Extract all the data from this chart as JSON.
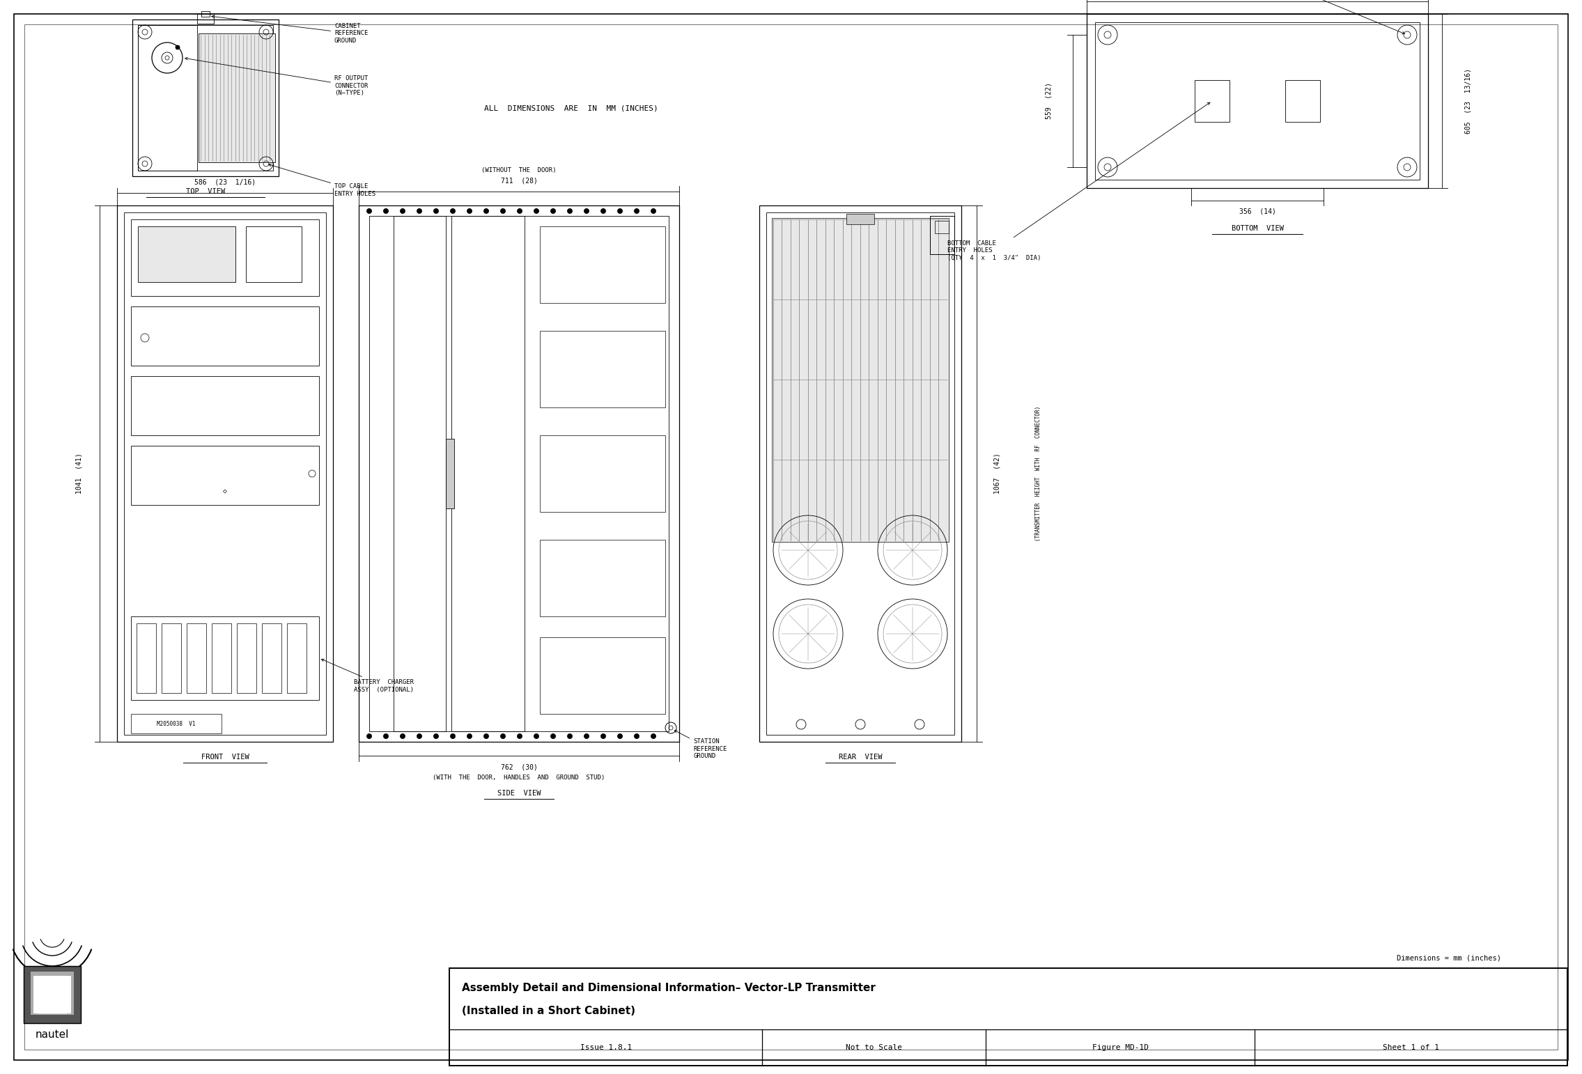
{
  "title_line1": "Assembly Detail and Dimensional Information– Vector-LP Transmitter",
  "title_line2": "(Installed in a Short Cabinet)",
  "subtitle_row": [
    "Issue 1.8.1",
    "Not to Scale",
    "Figure MD-1D",
    "Sheet 1 of 1"
  ],
  "dimensions_note": "Dimensions = mm (inches)",
  "all_dim_note": "ALL  DIMENSIONS  ARE  IN  MM (INCHES)",
  "bg_color": "#ffffff",
  "line_color": "#000000",
  "mid_gray": "#777777",
  "dark_gray": "#444444",
  "very_light_gray": "#e8e8e8",
  "light_gray": "#cccccc"
}
